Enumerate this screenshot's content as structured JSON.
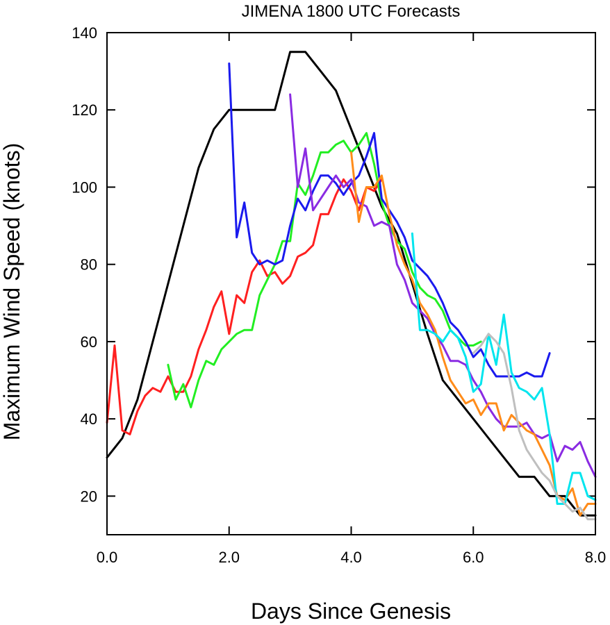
{
  "chart_data": {
    "type": "line",
    "title": "JIMENA 1800 UTC Forecasts",
    "xlabel": "Days Since Genesis",
    "ylabel": "Maximum Wind Speed (knots)",
    "xlim": [
      0,
      8
    ],
    "ylim": [
      10,
      140
    ],
    "xticks": [
      0,
      2,
      4,
      6,
      8
    ],
    "xtick_labels": [
      "0.0",
      "2.0",
      "4.0",
      "6.0",
      "8.0"
    ],
    "yticks": [
      20,
      40,
      60,
      80,
      100,
      120,
      140
    ],
    "ytick_labels": [
      "20",
      "40",
      "60",
      "80",
      "100",
      "120",
      "140"
    ],
    "grid": false,
    "series": [
      {
        "color": "#000000",
        "x": [
          0,
          0.25,
          0.5,
          0.75,
          1.0,
          1.25,
          1.5,
          1.75,
          2.0,
          2.25,
          2.5,
          2.75,
          3.0,
          3.25,
          3.5,
          3.75,
          4.0,
          4.25,
          4.5,
          4.75,
          5.0,
          5.25,
          5.5,
          5.75,
          6.0,
          6.25,
          6.5,
          6.75,
          7.0,
          7.25,
          7.5,
          7.75,
          8.0
        ],
        "y": [
          30,
          35,
          45,
          60,
          75,
          90,
          105,
          115,
          120,
          120,
          120,
          120,
          135,
          135,
          130,
          125,
          115,
          105,
          95,
          88,
          75,
          62,
          50,
          45,
          40,
          35,
          30,
          25,
          25,
          20,
          20,
          15,
          15
        ]
      },
      {
        "color": "#ff2020",
        "x": [
          0,
          0.125,
          0.25,
          0.375,
          0.5,
          0.625,
          0.75,
          0.875,
          1.0,
          1.125,
          1.25,
          1.375,
          1.5,
          1.625,
          1.75,
          1.875,
          2.0,
          2.125,
          2.25,
          2.375,
          2.5,
          2.625,
          2.75,
          2.875,
          3.0,
          3.125,
          3.25,
          3.375,
          3.5,
          3.625,
          3.75,
          3.875,
          4.0,
          4.125,
          4.25,
          4.375,
          4.5
        ],
        "y": [
          39,
          59,
          37,
          36,
          42,
          46,
          48,
          47,
          51,
          47,
          47,
          51,
          58,
          63,
          69,
          73,
          62,
          72,
          70,
          78,
          81,
          77,
          78,
          75,
          77,
          82,
          83,
          85,
          93,
          93,
          98,
          102,
          99,
          94,
          100,
          99,
          102
        ]
      },
      {
        "color": "#22ee22",
        "x": [
          1.0,
          1.125,
          1.25,
          1.375,
          1.5,
          1.625,
          1.75,
          1.875,
          2.0,
          2.125,
          2.25,
          2.375,
          2.5,
          2.625,
          2.75,
          2.875,
          3.0,
          3.125,
          3.25,
          3.375,
          3.5,
          3.625,
          3.75,
          3.875,
          4.0,
          4.125,
          4.25,
          4.375,
          4.5,
          4.625,
          4.75,
          4.875,
          5.0,
          5.125,
          5.25,
          5.375,
          5.5,
          5.625,
          5.75,
          5.875,
          6.0,
          6.125
        ],
        "y": [
          54,
          45,
          49,
          43,
          50,
          55,
          54,
          58,
          60,
          62,
          63,
          63,
          72,
          76,
          80,
          86,
          86,
          101,
          98,
          103,
          109,
          109,
          111,
          112,
          109,
          111,
          114,
          106,
          96,
          90,
          86,
          84,
          78,
          74,
          72,
          71,
          68,
          63,
          61,
          59,
          59,
          60
        ]
      },
      {
        "color": "#1a1aee",
        "x": [
          2.0,
          2.125,
          2.25,
          2.375,
          2.5,
          2.625,
          2.75,
          2.875,
          3.0,
          3.125,
          3.25,
          3.375,
          3.5,
          3.625,
          3.75,
          3.875,
          4.0,
          4.125,
          4.25,
          4.375,
          4.5,
          4.625,
          4.75,
          4.875,
          5.0,
          5.125,
          5.25,
          5.375,
          5.5,
          5.625,
          5.75,
          5.875,
          6.0,
          6.125,
          6.25,
          6.375,
          6.5,
          6.625,
          6.75,
          6.875,
          7.0,
          7.125,
          7.25
        ],
        "y": [
          132,
          87,
          96,
          83,
          80,
          81,
          80,
          81,
          90,
          97,
          94,
          99,
          103,
          103,
          101,
          98,
          101,
          103,
          108,
          114,
          97,
          94,
          91,
          87,
          81,
          79,
          77,
          74,
          70,
          65,
          63,
          60,
          56,
          58,
          54,
          51,
          51,
          51,
          51,
          52,
          51,
          51,
          57
        ]
      },
      {
        "color": "#8a2be2",
        "x": [
          3.0,
          3.125,
          3.25,
          3.375,
          3.5,
          3.625,
          3.75,
          3.875,
          4.0,
          4.125,
          4.25,
          4.375,
          4.5,
          4.625,
          4.75,
          4.875,
          5.0,
          5.125,
          5.25,
          5.375,
          5.5,
          5.625,
          5.75,
          5.875,
          6.0,
          6.125,
          6.25,
          6.375,
          6.5,
          6.625,
          6.75,
          6.875,
          7.0,
          7.125,
          7.25,
          7.375,
          7.5,
          7.625,
          7.75,
          7.875,
          8.0
        ],
        "y": [
          124,
          100,
          110,
          94,
          97,
          100,
          103,
          100,
          102,
          96,
          95,
          90,
          91,
          90,
          80,
          76,
          70,
          68,
          66,
          62,
          59,
          55,
          55,
          54,
          50,
          47,
          43,
          40,
          38,
          38,
          38,
          39,
          36,
          35,
          36,
          29,
          33,
          32,
          34,
          29,
          25
        ]
      },
      {
        "color": "#ff8c1a",
        "x": [
          4.0,
          4.125,
          4.25,
          4.375,
          4.5,
          4.625,
          4.75,
          4.875,
          5.0,
          5.125,
          5.25,
          5.375,
          5.5,
          5.625,
          5.75,
          5.875,
          6.0,
          6.125,
          6.25,
          6.375,
          6.5,
          6.625,
          6.75,
          6.875,
          7.0,
          7.125,
          7.25,
          7.375,
          7.5,
          7.625,
          7.75,
          7.875,
          8.0
        ],
        "y": [
          109,
          91,
          100,
          100,
          103,
          93,
          85,
          80,
          76,
          70,
          67,
          63,
          56,
          50,
          47,
          44,
          45,
          41,
          44,
          44,
          37,
          41,
          39,
          37,
          36,
          32,
          28,
          20,
          19,
          22,
          15,
          18,
          18
        ]
      },
      {
        "color": "#00e5ee",
        "x": [
          5.0,
          5.125,
          5.25,
          5.375,
          5.5,
          5.625,
          5.75,
          5.875,
          6.0,
          6.125,
          6.25,
          6.375,
          6.5,
          6.625,
          6.75,
          6.875,
          7.0,
          7.125,
          7.25,
          7.375,
          7.5,
          7.625,
          7.75,
          7.875,
          8.0
        ],
        "y": [
          88,
          63,
          63,
          62,
          60,
          63,
          61,
          56,
          47,
          49,
          62,
          54,
          67,
          52,
          48,
          47,
          45,
          48,
          36,
          18,
          18,
          26,
          26,
          20,
          19
        ]
      },
      {
        "color": "#bfbfbf",
        "x": [
          6.0,
          6.125,
          6.25,
          6.375,
          6.5,
          6.625,
          6.75,
          6.875,
          7.0,
          7.125,
          7.25,
          7.375,
          7.5,
          7.625,
          7.75,
          7.875,
          8.0
        ],
        "y": [
          57,
          59,
          62,
          60,
          57,
          48,
          37,
          32,
          29,
          26,
          24,
          20,
          18,
          16,
          17,
          14,
          14
        ]
      }
    ]
  }
}
